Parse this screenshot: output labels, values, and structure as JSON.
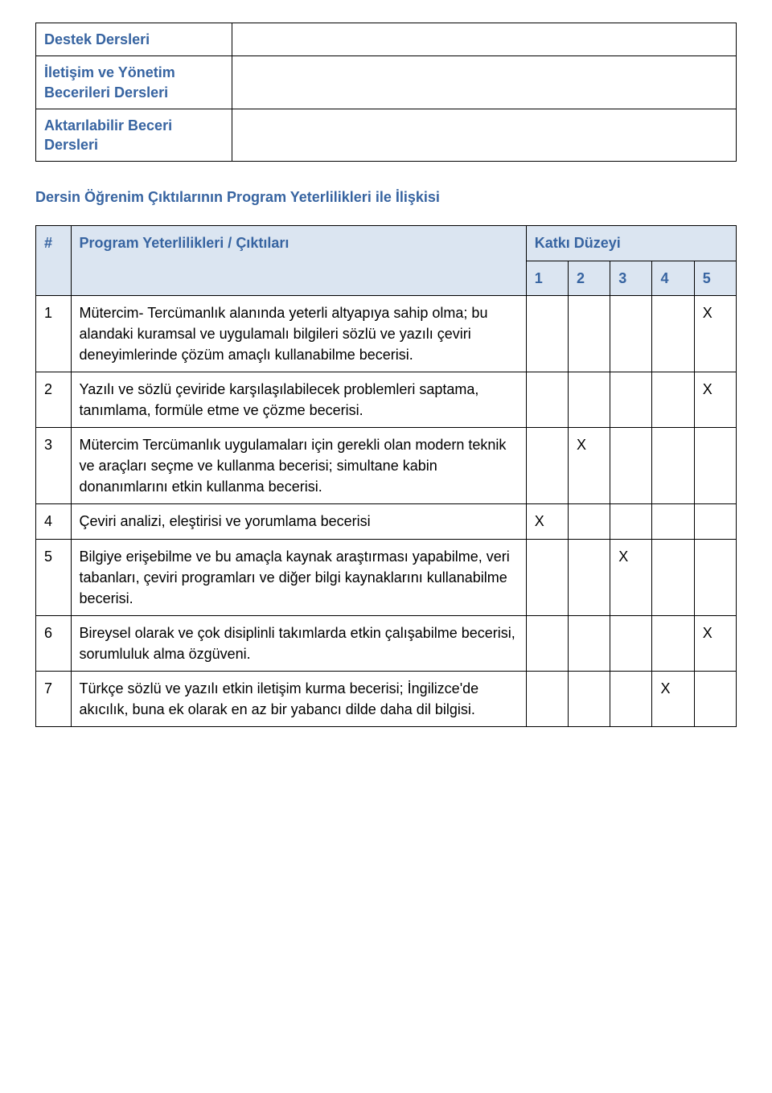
{
  "colors": {
    "heading_text": "#3764a1",
    "header_row_bg": "#dbe5f1",
    "border": "#000000",
    "body_text": "#000000",
    "background": "#ffffff"
  },
  "intro_rows": [
    {
      "label": "Destek Dersleri"
    },
    {
      "label": "İletişim ve Yönetim Becerileri Dersleri"
    },
    {
      "label": "Aktarılabilir Beceri Dersleri"
    }
  ],
  "section_heading": "Dersin Öğrenim Çıktılarının Program Yeterlilikleri ile İlişkisi",
  "table_headers": {
    "num": "#",
    "desc": "Program Yeterlilikleri / Çıktıları",
    "contrib": "Katkı Düzeyi",
    "levels": [
      "1",
      "2",
      "3",
      "4",
      "5"
    ]
  },
  "rows": [
    {
      "n": "1",
      "text": "Mütercim- Tercümanlık alanında yeterli altyapıya sahip olma; bu alandaki kuramsal ve uygulamalı bilgileri sözlü ve yazılı çeviri deneyimlerinde çözüm amaçlı kullanabilme becerisi.",
      "marks": [
        "",
        "",
        "",
        "",
        "X"
      ]
    },
    {
      "n": "2",
      "text": "Yazılı ve sözlü çeviride karşılaşılabilecek problemleri saptama, tanımlama, formüle etme ve çözme becerisi.",
      "marks": [
        "",
        "",
        "",
        "",
        "X"
      ]
    },
    {
      "n": "3",
      "text": "Mütercim Tercümanlık uygulamaları için gerekli olan modern teknik ve araçları seçme ve kullanma becerisi; simultane kabin donanımlarını etkin kullanma becerisi.",
      "marks": [
        "",
        "X",
        "",
        "",
        ""
      ]
    },
    {
      "n": "4",
      "text": "Çeviri analizi, eleştirisi ve yorumlama becerisi",
      "marks": [
        "X",
        "",
        "",
        "",
        ""
      ]
    },
    {
      "n": "5",
      "text": "Bilgiye erişebilme ve bu amaçla kaynak araştırması yapabilme, veri tabanları, çeviri programları ve diğer bilgi kaynaklarını kullanabilme becerisi.",
      "marks": [
        "",
        "",
        "X",
        "",
        ""
      ]
    },
    {
      "n": "6",
      "text": "Bireysel olarak ve çok disiplinli takımlarda etkin çalışabilme becerisi, sorumluluk alma özgüveni.",
      "marks": [
        "",
        "",
        "",
        "",
        "X"
      ]
    },
    {
      "n": "7",
      "text": "Türkçe sözlü ve yazılı etkin iletişim kurma becerisi; İngilizce'de akıcılık, buna ek olarak en az bir yabancı dilde daha dil bilgisi.",
      "marks": [
        "",
        "",
        "",
        "X",
        ""
      ]
    }
  ]
}
